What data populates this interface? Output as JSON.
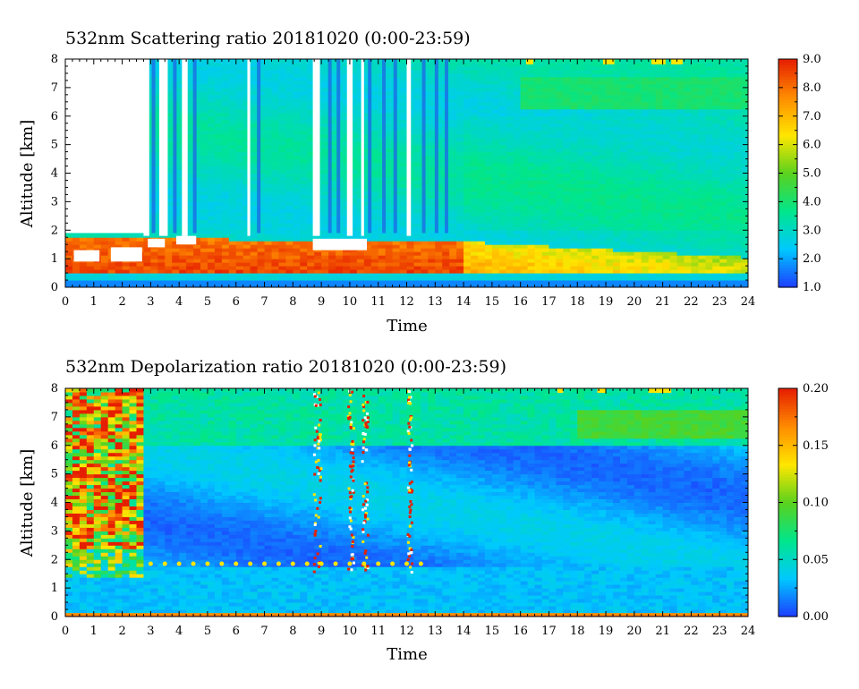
{
  "chart_data": [
    {
      "type": "heatmap",
      "title": "532nm Scattering ratio  20181020 (0:00-23:59)",
      "xlabel": "Time",
      "ylabel": "Altitude [km]",
      "xlim": [
        0,
        24
      ],
      "ylim": [
        0,
        8
      ],
      "x_ticks": [
        "0",
        "1",
        "2",
        "3",
        "4",
        "5",
        "6",
        "7",
        "8",
        "9",
        "10",
        "11",
        "12",
        "13",
        "14",
        "15",
        "16",
        "17",
        "18",
        "19",
        "20",
        "21",
        "22",
        "23",
        "24"
      ],
      "y_ticks": [
        "0",
        "1",
        "2",
        "3",
        "4",
        "5",
        "6",
        "7",
        "8"
      ],
      "colorbar": {
        "range": [
          1.0,
          9.0
        ],
        "ticks": [
          "1.0",
          "2.0",
          "3.0",
          "4.0",
          "5.0",
          "6.0",
          "7.0",
          "8.0",
          "9.0"
        ]
      },
      "colormap": [
        "#1e3cff",
        "#00c8ff",
        "#00e68c",
        "#5ad21e",
        "#ffe600",
        "#ff8c00",
        "#e61e00"
      ],
      "no_data_color": "#ffffff",
      "features": [
        {
          "name": "surface layer",
          "x_range": [
            0,
            24
          ],
          "alt_km": [
            0.3,
            0.5
          ],
          "value": 2.5
        },
        {
          "name": "boundary layer aerosol",
          "x_range": [
            0,
            14
          ],
          "alt_km": [
            0.5,
            1.8
          ],
          "value": 8.0
        },
        {
          "name": "boundary layer aerosol",
          "x_range": [
            14,
            24
          ],
          "alt_km": [
            0.5,
            1.0
          ],
          "value": 6.5
        },
        {
          "name": "free troposphere",
          "x_range": [
            3,
            24
          ],
          "alt_km": [
            1.8,
            8.0
          ],
          "value": 3.0
        },
        {
          "name": "elevated layer",
          "x_range": [
            17,
            24
          ],
          "alt_km": [
            6.3,
            7.5
          ],
          "value": 3.8
        },
        {
          "name": "no-data region",
          "x_range": [
            0,
            2.8
          ],
          "alt_km": [
            1.9,
            8.0
          ],
          "value": null
        }
      ],
      "no_data_columns": [
        [
          2.75,
          2.95
        ],
        [
          3.3,
          3.6
        ],
        [
          4.1,
          4.3
        ],
        [
          6.4,
          6.5
        ],
        [
          8.7,
          8.95
        ],
        [
          9.9,
          10.1
        ],
        [
          10.4,
          10.5
        ],
        [
          12.0,
          12.15
        ]
      ],
      "stripe_columns": [
        3.1,
        3.85,
        4.55,
        6.8,
        9.3,
        9.6,
        10.7,
        11.2,
        11.6,
        12.6,
        13.05,
        13.4
      ]
    },
    {
      "type": "heatmap",
      "title": "532nm Depolarization ratio  20181020 (0:00-23:59)",
      "xlabel": "Time",
      "ylabel": "Altitude [km]",
      "xlim": [
        0,
        24
      ],
      "ylim": [
        0,
        8
      ],
      "x_ticks": [
        "0",
        "1",
        "2",
        "3",
        "4",
        "5",
        "6",
        "7",
        "8",
        "9",
        "10",
        "11",
        "12",
        "13",
        "14",
        "15",
        "16",
        "17",
        "18",
        "19",
        "20",
        "21",
        "22",
        "23",
        "24"
      ],
      "y_ticks": [
        "0",
        "1",
        "2",
        "3",
        "4",
        "5",
        "6",
        "7",
        "8"
      ],
      "colorbar": {
        "range": [
          0.0,
          0.2
        ],
        "ticks": [
          "0.00",
          "0.05",
          "0.10",
          "0.15",
          "0.20"
        ]
      },
      "colormap": [
        "#1e3cff",
        "#00c8ff",
        "#00e68c",
        "#5ad21e",
        "#ffe600",
        "#ff8c00",
        "#e61e00"
      ],
      "no_data_color": "#ffffff",
      "features": [
        {
          "name": "surface",
          "x_range": [
            0,
            24
          ],
          "alt_km": [
            0.0,
            0.1
          ],
          "value": 0.2
        },
        {
          "name": "boundary layer",
          "x_range": [
            0,
            24
          ],
          "alt_km": [
            0.1,
            1.8
          ],
          "value": 0.03
        },
        {
          "name": "noisy upper region",
          "x_range": [
            0,
            2.8
          ],
          "alt_km": [
            2.5,
            8.0
          ],
          "value": 0.15
        },
        {
          "name": "cloud-edge signals",
          "x_range": [
            0,
            2.8
          ],
          "alt_km": [
            1.5,
            2.5
          ],
          "value": 0.12
        },
        {
          "name": "mid troposphere",
          "x_range": [
            2.8,
            24
          ],
          "alt_km": [
            1.8,
            6.0
          ],
          "value": 0.03
        },
        {
          "name": "upper troposphere",
          "x_range": [
            2.8,
            24
          ],
          "alt_km": [
            6.0,
            8.0
          ],
          "value": 0.06
        },
        {
          "name": "elevated layer",
          "x_range": [
            18,
            24
          ],
          "alt_km": [
            6.3,
            7.3
          ],
          "value": 0.09
        }
      ],
      "noisy_columns": [
        [
          8.7,
          8.95
        ],
        [
          9.9,
          10.1
        ],
        [
          10.4,
          10.6
        ],
        [
          12.0,
          12.15
        ]
      ]
    }
  ]
}
